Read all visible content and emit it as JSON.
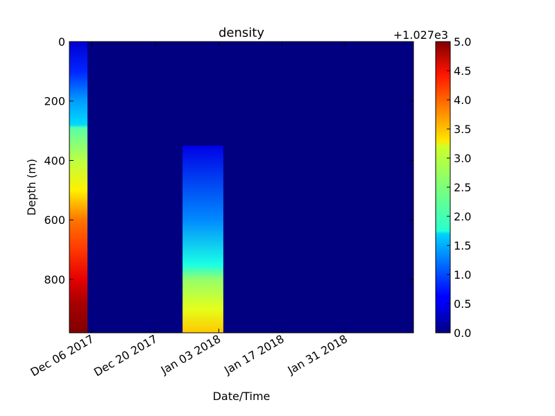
{
  "chart_data": {
    "type": "heatmap",
    "title": "density",
    "xlabel": "Date/Time",
    "ylabel": "Depth (m)",
    "offset_label": "+1.027e3",
    "x_ticks": [
      "Dec 06 2017",
      "Dec 20 2017",
      "Jan 03 2018",
      "Jan 17 2018",
      "Jan 31 2018"
    ],
    "xlim": [
      "2017-12-01",
      "2018-02-15"
    ],
    "y_ticks": [
      0,
      200,
      400,
      600,
      800
    ],
    "ylim": [
      980,
      0
    ],
    "y_inverted": true,
    "colorbar": {
      "colormap": "jet",
      "range": [
        0.0,
        5.0
      ],
      "ticks": [
        "0.0",
        "0.5",
        "1.0",
        "1.5",
        "2.0",
        "2.5",
        "3.0",
        "3.5",
        "4.0",
        "4.5",
        "5.0"
      ]
    },
    "background_value": 0.0,
    "profiles": [
      {
        "date_start": "2017-12-01",
        "date_end": "2017-12-05",
        "depth_values": [
          [
            0,
            0.4
          ],
          [
            100,
            0.8
          ],
          [
            200,
            1.4
          ],
          [
            280,
            1.7
          ],
          [
            290,
            2.3
          ],
          [
            400,
            2.8
          ],
          [
            500,
            3.2
          ],
          [
            600,
            3.8
          ],
          [
            700,
            4.1
          ],
          [
            800,
            4.5
          ],
          [
            880,
            4.8
          ],
          [
            980,
            5.0
          ]
        ]
      },
      {
        "date_start": "2017-12-26",
        "date_end": "2018-01-04",
        "depth_values": [
          [
            350,
            0.5
          ],
          [
            600,
            1.3
          ],
          [
            750,
            2.0
          ],
          [
            800,
            2.6
          ],
          [
            900,
            3.0
          ],
          [
            980,
            3.4
          ]
        ]
      }
    ]
  }
}
